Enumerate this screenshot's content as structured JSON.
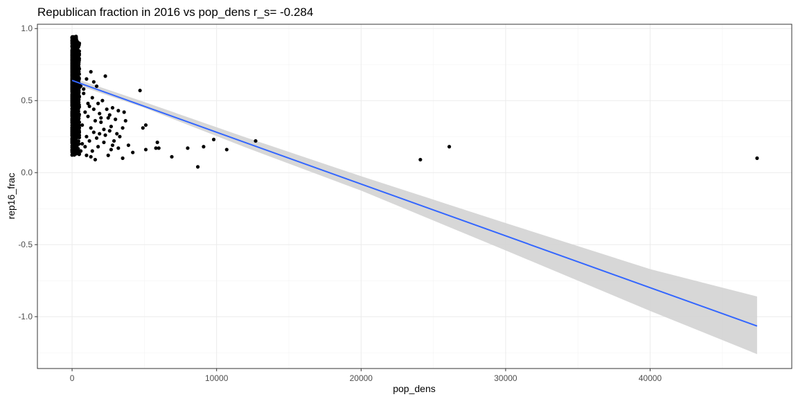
{
  "chart_data": {
    "type": "scatter",
    "title": "Republican fraction in 2016 vs pop_dens  r_s= -0.284",
    "xlabel": "pop_dens",
    "ylabel": "rep16_frac",
    "xlim": [
      -2400,
      49800
    ],
    "ylim": [
      -1.36,
      1.03
    ],
    "x_ticks": [
      0,
      10000,
      20000,
      30000,
      40000
    ],
    "x_tick_labels": [
      "0",
      "10000",
      "20000",
      "30000",
      "40000"
    ],
    "y_ticks": [
      1.0,
      0.5,
      0.0,
      -0.5,
      -1.0
    ],
    "y_tick_labels": [
      "1.0",
      "0.5",
      "0.0",
      "-0.5",
      "-1.0"
    ],
    "grid": true,
    "point_color": "#000000",
    "line_color": "#3366ff",
    "band_color": "#d3d3d3",
    "points": [
      [
        4700,
        0.57
      ],
      [
        2300,
        0.67
      ],
      [
        1300,
        0.7
      ],
      [
        1000,
        0.65
      ],
      [
        1700,
        0.6
      ],
      [
        600,
        0.6
      ],
      [
        2800,
        0.45
      ],
      [
        3200,
        0.43
      ],
      [
        3600,
        0.42
      ],
      [
        3700,
        0.36
      ],
      [
        3000,
        0.37
      ],
      [
        2500,
        0.38
      ],
      [
        2000,
        0.35
      ],
      [
        3500,
        0.31
      ],
      [
        4900,
        0.31
      ],
      [
        5100,
        0.33
      ],
      [
        2200,
        0.3
      ],
      [
        1500,
        0.28
      ],
      [
        2600,
        0.29
      ],
      [
        3300,
        0.25
      ],
      [
        3900,
        0.19
      ],
      [
        4200,
        0.14
      ],
      [
        5100,
        0.16
      ],
      [
        3500,
        0.1
      ],
      [
        2500,
        0.12
      ],
      [
        1600,
        0.09
      ],
      [
        1300,
        0.11
      ],
      [
        2700,
        0.16
      ],
      [
        3200,
        0.17
      ],
      [
        5900,
        0.21
      ],
      [
        6000,
        0.17
      ],
      [
        5800,
        0.17
      ],
      [
        6900,
        0.11
      ],
      [
        8000,
        0.17
      ],
      [
        9100,
        0.18
      ],
      [
        9800,
        0.23
      ],
      [
        10700,
        0.16
      ],
      [
        8700,
        0.04
      ],
      [
        12700,
        0.22
      ],
      [
        24100,
        0.09
      ],
      [
        26100,
        0.18
      ],
      [
        47400,
        0.1
      ],
      [
        1800,
        0.48
      ],
      [
        2100,
        0.5
      ],
      [
        1200,
        0.46
      ],
      [
        900,
        0.42
      ],
      [
        1100,
        0.39
      ],
      [
        700,
        0.33
      ],
      [
        1900,
        0.41
      ],
      [
        2400,
        0.44
      ],
      [
        1400,
        0.52
      ],
      [
        800,
        0.55
      ],
      [
        1000,
        0.25
      ],
      [
        700,
        0.2
      ],
      [
        600,
        0.15
      ],
      [
        500,
        0.13
      ],
      [
        900,
        0.18
      ],
      [
        1200,
        0.22
      ],
      [
        1700,
        0.24
      ],
      [
        2200,
        0.21
      ],
      [
        2900,
        0.22
      ],
      [
        1800,
        0.18
      ],
      [
        2300,
        0.26
      ],
      [
        2700,
        0.32
      ],
      [
        1600,
        0.36
      ],
      [
        1300,
        0.31
      ],
      [
        1900,
        0.27
      ],
      [
        2000,
        0.38
      ],
      [
        2600,
        0.4
      ],
      [
        1500,
        0.44
      ],
      [
        1100,
        0.48
      ],
      [
        3100,
        0.27
      ],
      [
        2800,
        0.19
      ],
      [
        1400,
        0.15
      ],
      [
        1000,
        0.12
      ],
      [
        400,
        0.62
      ],
      [
        500,
        0.72
      ],
      [
        300,
        0.66
      ],
      [
        1500,
        0.63
      ],
      [
        800,
        0.58
      ]
    ],
    "dense_cluster": {
      "x_range": [
        0,
        500
      ],
      "y_range": [
        0.12,
        0.95
      ],
      "count": 1200
    },
    "fit_line": {
      "x": [
        0,
        47400
      ],
      "y": [
        0.64,
        -1.065
      ]
    },
    "confidence_band": {
      "x": [
        0,
        5000,
        12000,
        20000,
        30000,
        40000,
        47400
      ],
      "upper": [
        0.66,
        0.49,
        0.245,
        -0.025,
        -0.35,
        -0.67,
        -0.86
      ],
      "lower": [
        0.62,
        0.45,
        0.175,
        -0.125,
        -0.54,
        -0.96,
        -1.26
      ]
    }
  }
}
